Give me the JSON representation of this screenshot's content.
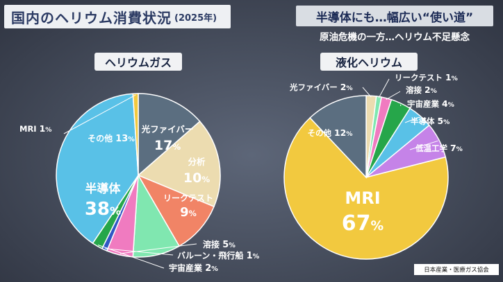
{
  "title": {
    "main": "国内のヘリウム消費状況",
    "year": "(2025年)"
  },
  "banner": {
    "headline": "半導体にも…幅広い“使い道”",
    "sub": "原油危機の一方…ヘリウム不足懸念"
  },
  "source": "日本産業・医療ガス協会",
  "colors": {
    "slate": "#5b6e80",
    "beige": "#ecdcb0",
    "salmon": "#f18466",
    "mint": "#80e7b0",
    "pink": "#f07bc0",
    "blue": "#2f57c4",
    "green": "#26a64a",
    "skyblue": "#59c1e7",
    "yellow": "#f2c93f",
    "violet": "#c583e8"
  },
  "chart_data": [
    {
      "type": "pie",
      "title": "ヘリウムガス",
      "slices": [
        {
          "label": "その他",
          "value": 13
        },
        {
          "label": "光ファイバー",
          "value": 17
        },
        {
          "label": "分析",
          "value": 10
        },
        {
          "label": "リークテスト",
          "value": 9
        },
        {
          "label": "溶接",
          "value": 5
        },
        {
          "label": "バルーン・飛行船",
          "value": 1
        },
        {
          "label": "宇宙産業",
          "value": 2
        },
        {
          "label": "半導体",
          "value": 38
        },
        {
          "label": "MRI",
          "value": 1
        }
      ],
      "unit": "%"
    },
    {
      "type": "pie",
      "title": "液化ヘリウム",
      "slices": [
        {
          "label": "光ファイバー",
          "value": 2
        },
        {
          "label": "リークテスト",
          "value": 1
        },
        {
          "label": "溶接",
          "value": 2
        },
        {
          "label": "宇宙産業",
          "value": 4
        },
        {
          "label": "半導体",
          "value": 5
        },
        {
          "label": "低温工学",
          "value": 7
        },
        {
          "label": "MRI",
          "value": 67
        },
        {
          "label": "その他",
          "value": 12
        }
      ],
      "unit": "%"
    }
  ]
}
